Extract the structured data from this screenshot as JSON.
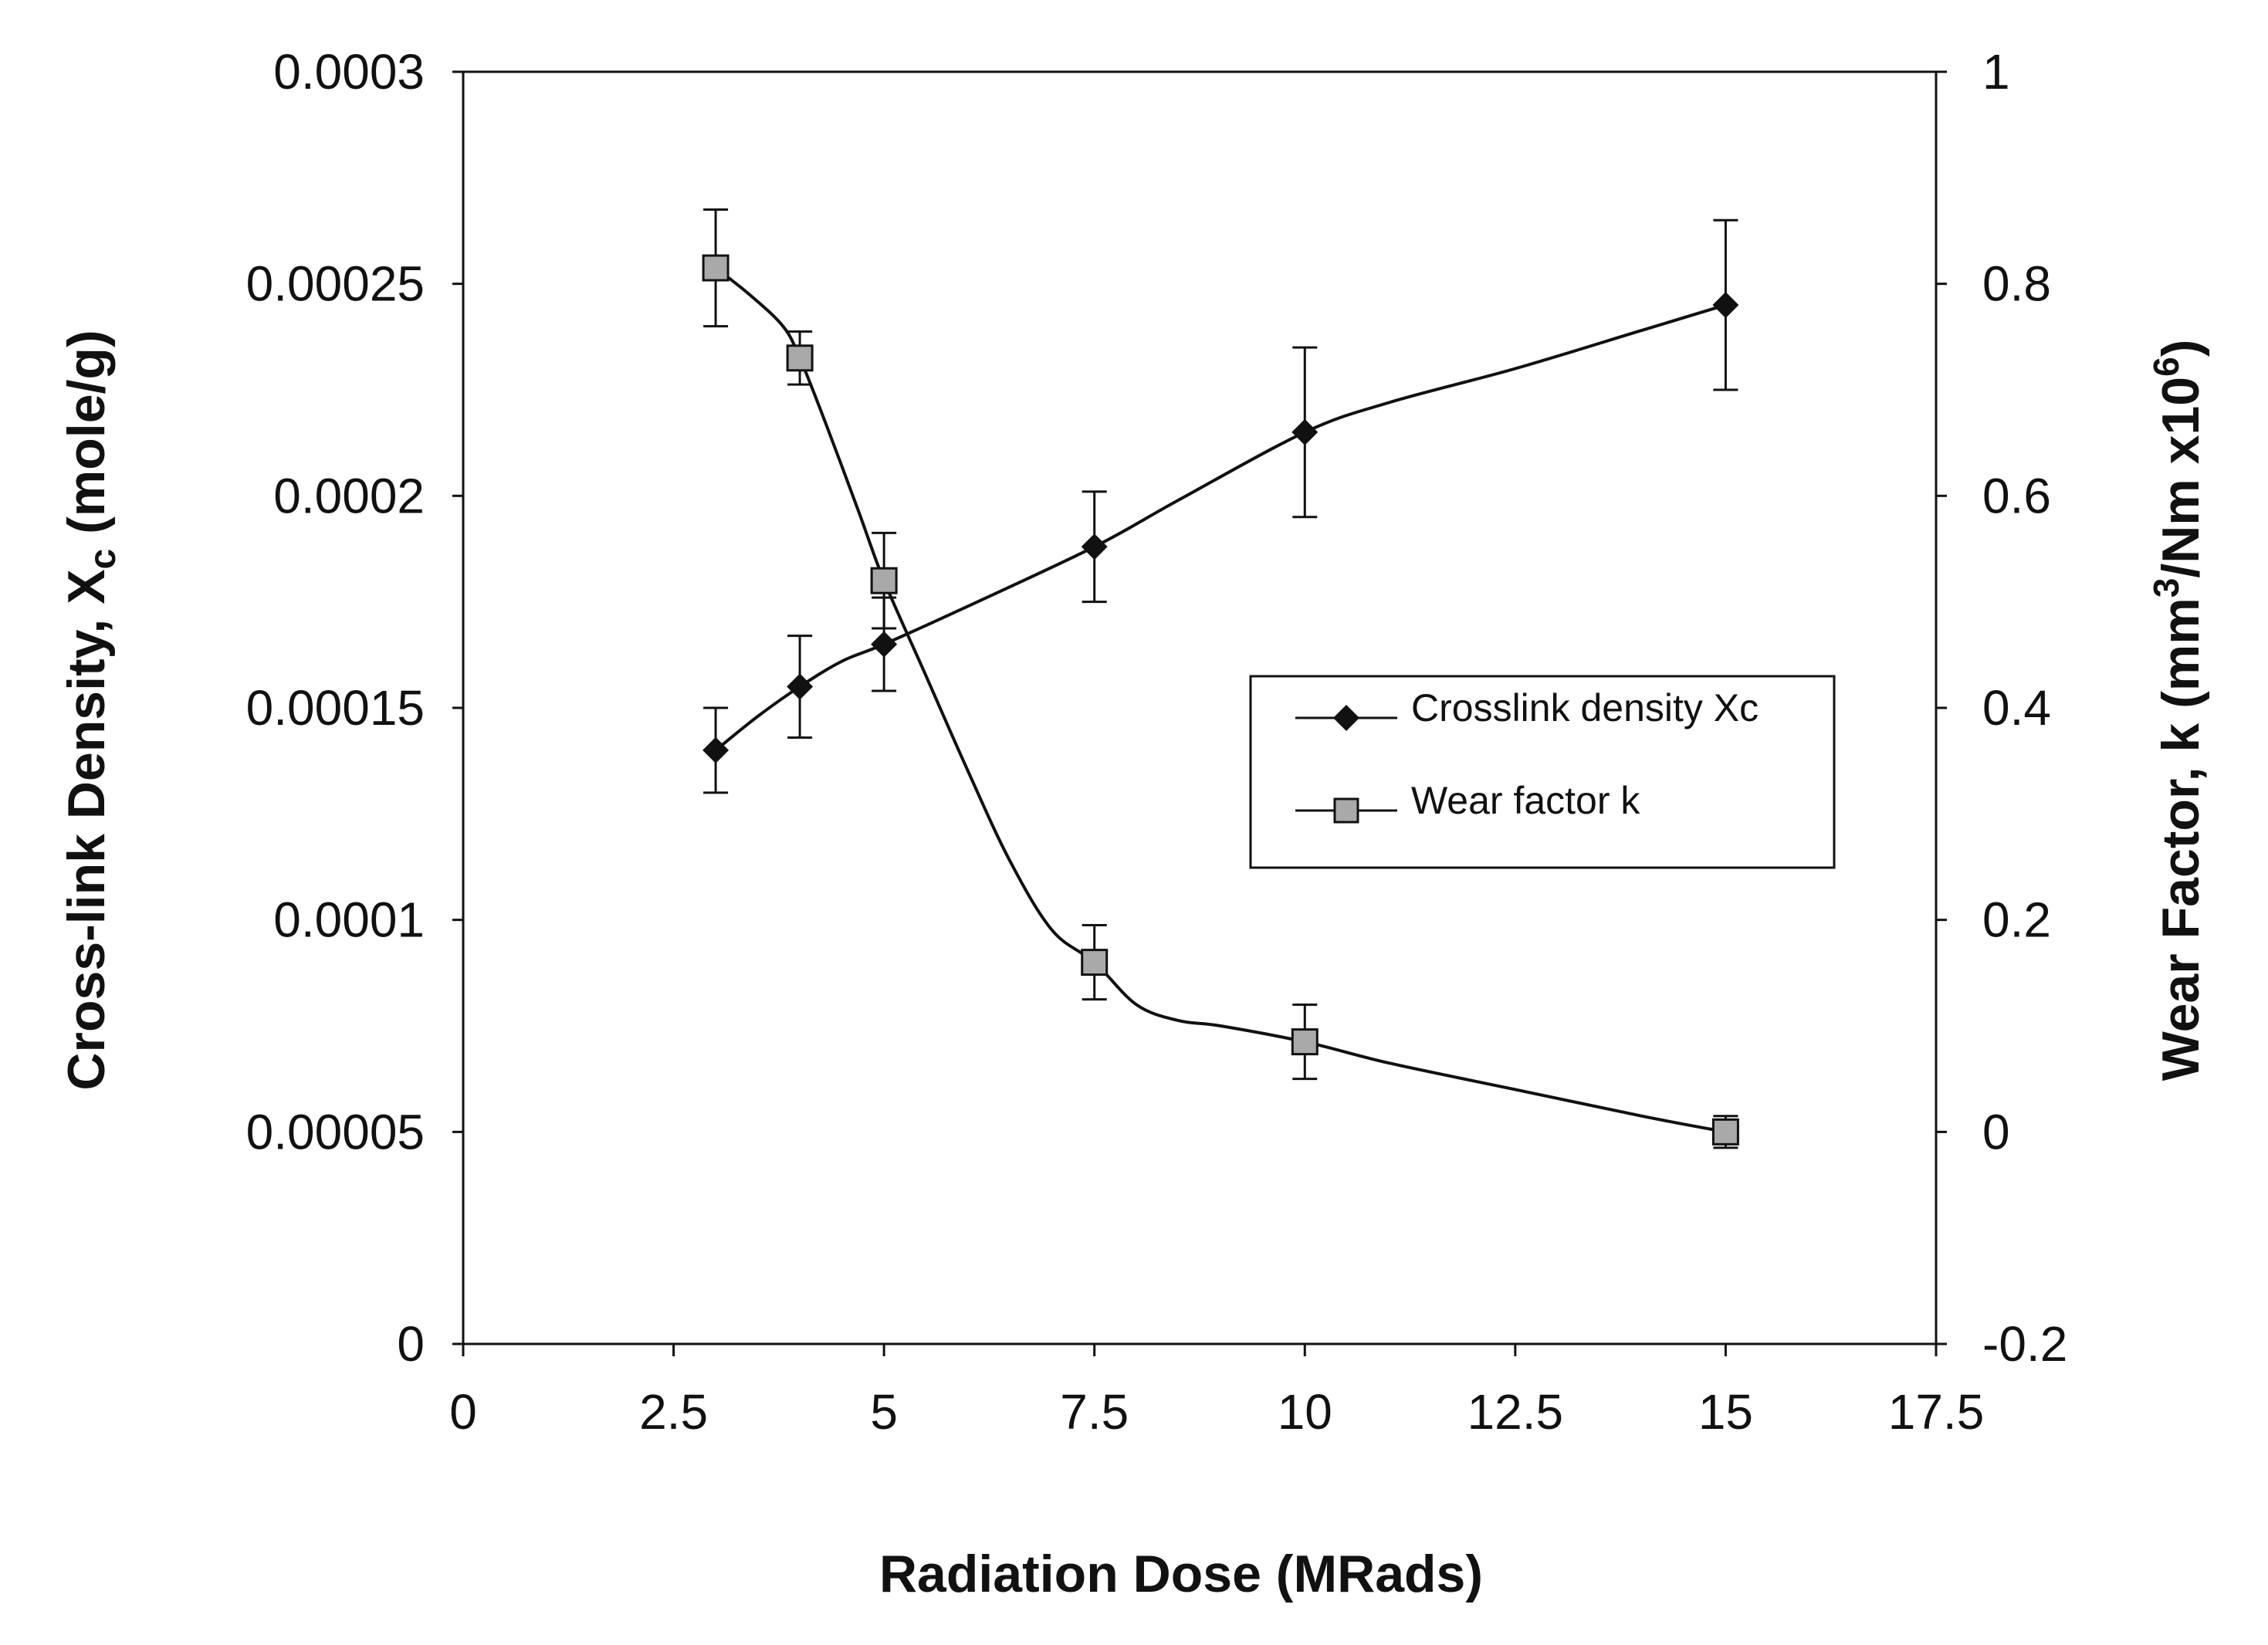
{
  "chart_data": {
    "type": "line",
    "xlabel": "Radiation Dose (MRads)",
    "ylabel_left": {
      "main": "Cross-link Density, X",
      "sub": "c",
      "suffix": " (mole/g)"
    },
    "ylabel_right": {
      "main": "Wear Factor, k (mm",
      "sup1": "3",
      "mid": "/Nm x10",
      "sup2": "6",
      "suffix": ")"
    },
    "x_range": [
      0,
      17.5
    ],
    "x_ticks": [
      "0",
      "2.5",
      "5",
      "7.5",
      "10",
      "12.5",
      "15",
      "17.5"
    ],
    "x_tick_values": [
      0,
      2.5,
      5,
      7.5,
      10,
      12.5,
      15,
      17.5
    ],
    "y_left_range": [
      0,
      0.0003
    ],
    "y_left_ticks": [
      "0",
      "0.00005",
      "0.0001",
      "0.00015",
      "0.0002",
      "0.00025",
      "0.0003"
    ],
    "y_left_tick_values": [
      0,
      5e-05,
      0.0001,
      0.00015,
      0.0002,
      0.00025,
      0.0003
    ],
    "y_right_range": [
      -0.2,
      1
    ],
    "y_right_ticks": [
      "-0.2",
      "0",
      "0.2",
      "0.4",
      "0.6",
      "0.8",
      "1"
    ],
    "y_right_tick_values": [
      -0.2,
      0,
      0.2,
      0.4,
      0.6,
      0.8,
      1
    ],
    "grid": false,
    "legend_position": "center-right",
    "series": [
      {
        "name": "Crosslink density Xc",
        "axis": "left",
        "marker": "diamond",
        "color": "#111111",
        "x": [
          3,
          4,
          5,
          7.5,
          10,
          15
        ],
        "y": [
          0.00014,
          0.000155,
          0.000165,
          0.000188,
          0.000215,
          0.000245
        ],
        "error": [
          1e-05,
          1.2e-05,
          1.1e-05,
          1.3e-05,
          2e-05,
          2e-05
        ],
        "curve_x": [
          3,
          3.5,
          4,
          4.5,
          5,
          6,
          7.5,
          8.5,
          10,
          11,
          12.5,
          14,
          15
        ],
        "curve_y": [
          0.00014,
          0.000148,
          0.000155,
          0.000161,
          0.000165,
          0.000174,
          0.000188,
          0.000199,
          0.000215,
          0.000222,
          0.00023,
          0.000239,
          0.000245
        ]
      },
      {
        "name": "Wear factor k",
        "axis": "right",
        "marker": "square",
        "color": "#111111",
        "fill": "#a9a9a9",
        "x": [
          3,
          4,
          5,
          7.5,
          10,
          15
        ],
        "y": [
          0.815,
          0.73,
          0.52,
          0.16,
          0.085,
          0.0
        ],
        "error": [
          0.055,
          0.025,
          0.045,
          0.035,
          0.035,
          0.015
        ],
        "curve_x": [
          3,
          3.4,
          3.8,
          4,
          4.3,
          4.7,
          5,
          5.5,
          6,
          6.5,
          7,
          7.5,
          8,
          8.5,
          9,
          10,
          11,
          12.5,
          14,
          15
        ],
        "curve_y": [
          0.815,
          0.79,
          0.76,
          0.73,
          0.67,
          0.585,
          0.52,
          0.43,
          0.34,
          0.255,
          0.19,
          0.16,
          0.12,
          0.105,
          0.1,
          0.085,
          0.065,
          0.04,
          0.015,
          0.0
        ]
      }
    ]
  }
}
